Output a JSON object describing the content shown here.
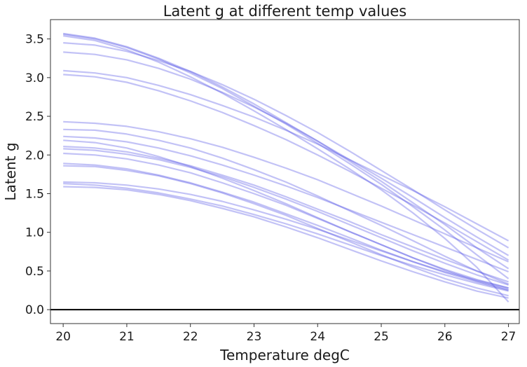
{
  "chart_data": {
    "type": "line",
    "title": "Latent g at different temp values",
    "xlabel": "Temperature degC",
    "ylabel": "Latent g",
    "xlim": [
      19.8,
      27.17
    ],
    "ylim": [
      -0.18,
      3.75
    ],
    "xticks": [
      20,
      21,
      22,
      23,
      24,
      25,
      26,
      27
    ],
    "xtick_labels": [
      "20",
      "21",
      "22",
      "23",
      "24",
      "25",
      "26",
      "27"
    ],
    "yticks": [
      0.0,
      0.5,
      1.0,
      1.5,
      2.0,
      2.5,
      3.0,
      3.5
    ],
    "ytick_labels": [
      "0.0",
      "0.5",
      "1.0",
      "1.5",
      "2.0",
      "2.5",
      "3.0",
      "3.5"
    ],
    "grid": false,
    "legend": "none",
    "line_color": "#5050e6",
    "line_opacity": 0.35,
    "reference_line": {
      "y": 0.0,
      "color": "#000000"
    },
    "x": [
      20,
      20.5,
      21,
      21.5,
      22,
      22.5,
      23,
      23.5,
      24,
      24.5,
      25,
      25.5,
      26,
      26.5,
      27
    ],
    "series": [
      {
        "values": [
          3.57,
          3.51,
          3.4,
          3.25,
          3.08,
          2.88,
          2.66,
          2.42,
          2.18,
          1.92,
          1.66,
          1.38,
          1.1,
          0.8,
          0.53
        ]
      },
      {
        "values": [
          3.56,
          3.5,
          3.39,
          3.24,
          3.06,
          2.86,
          2.63,
          2.4,
          2.15,
          1.89,
          1.62,
          1.33,
          1.03,
          0.71,
          0.4
        ]
      },
      {
        "values": [
          3.54,
          3.48,
          3.36,
          3.2,
          3.01,
          2.8,
          2.57,
          2.33,
          2.08,
          1.82,
          1.55,
          1.25,
          0.92,
          0.55,
          0.1
        ]
      },
      {
        "values": [
          3.45,
          3.42,
          3.34,
          3.22,
          3.08,
          2.91,
          2.72,
          2.51,
          2.29,
          2.05,
          1.8,
          1.55,
          1.29,
          1.04,
          0.8
        ]
      },
      {
        "values": [
          3.33,
          3.3,
          3.23,
          3.12,
          2.98,
          2.81,
          2.62,
          2.41,
          2.18,
          1.94,
          1.7,
          1.45,
          1.19,
          0.94,
          0.7
        ]
      },
      {
        "values": [
          3.09,
          3.06,
          3.0,
          2.9,
          2.78,
          2.64,
          2.49,
          2.32,
          2.14,
          1.94,
          1.74,
          1.54,
          1.33,
          1.11,
          0.89
        ]
      },
      {
        "values": [
          3.04,
          3.01,
          2.94,
          2.83,
          2.7,
          2.55,
          2.38,
          2.2,
          2.0,
          1.79,
          1.57,
          1.35,
          1.12,
          0.88,
          0.64
        ]
      },
      {
        "values": [
          2.43,
          2.41,
          2.37,
          2.3,
          2.21,
          2.1,
          1.97,
          1.83,
          1.68,
          1.51,
          1.34,
          1.16,
          0.98,
          0.8,
          0.62
        ]
      },
      {
        "values": [
          2.33,
          2.32,
          2.27,
          2.19,
          2.09,
          1.96,
          1.81,
          1.65,
          1.47,
          1.28,
          1.09,
          0.89,
          0.69,
          0.5,
          0.33
        ]
      },
      {
        "values": [
          2.24,
          2.22,
          2.17,
          2.09,
          1.99,
          1.87,
          1.74,
          1.6,
          1.45,
          1.29,
          1.13,
          0.97,
          0.81,
          0.65,
          0.49
        ]
      },
      {
        "values": [
          2.19,
          2.16,
          2.09,
          1.98,
          1.85,
          1.7,
          1.54,
          1.37,
          1.19,
          1.01,
          0.84,
          0.67,
          0.52,
          0.39,
          0.28
        ]
      },
      {
        "values": [
          2.11,
          2.09,
          2.04,
          1.96,
          1.86,
          1.74,
          1.61,
          1.46,
          1.3,
          1.14,
          0.97,
          0.81,
          0.65,
          0.5,
          0.36
        ]
      },
      {
        "values": [
          2.08,
          2.06,
          2.01,
          1.94,
          1.84,
          1.72,
          1.58,
          1.43,
          1.27,
          1.1,
          0.93,
          0.76,
          0.6,
          0.45,
          0.32
        ]
      },
      {
        "values": [
          2.02,
          2.0,
          1.95,
          1.87,
          1.77,
          1.64,
          1.5,
          1.35,
          1.18,
          1.01,
          0.84,
          0.67,
          0.51,
          0.37,
          0.26
        ]
      },
      {
        "values": [
          1.89,
          1.87,
          1.82,
          1.74,
          1.64,
          1.52,
          1.39,
          1.24,
          1.09,
          0.93,
          0.77,
          0.62,
          0.48,
          0.36,
          0.25
        ]
      },
      {
        "values": [
          1.86,
          1.85,
          1.8,
          1.73,
          1.63,
          1.51,
          1.37,
          1.22,
          1.05,
          0.88,
          0.71,
          0.55,
          0.4,
          0.28,
          0.18
        ]
      },
      {
        "values": [
          1.65,
          1.64,
          1.61,
          1.56,
          1.49,
          1.4,
          1.29,
          1.17,
          1.04,
          0.9,
          0.76,
          0.62,
          0.49,
          0.38,
          0.28
        ]
      },
      {
        "values": [
          1.63,
          1.61,
          1.57,
          1.51,
          1.43,
          1.34,
          1.23,
          1.11,
          0.98,
          0.84,
          0.7,
          0.57,
          0.45,
          0.34,
          0.24
        ]
      },
      {
        "values": [
          1.59,
          1.58,
          1.55,
          1.49,
          1.41,
          1.31,
          1.2,
          1.07,
          0.93,
          0.78,
          0.63,
          0.49,
          0.36,
          0.24,
          0.15
        ]
      }
    ]
  }
}
